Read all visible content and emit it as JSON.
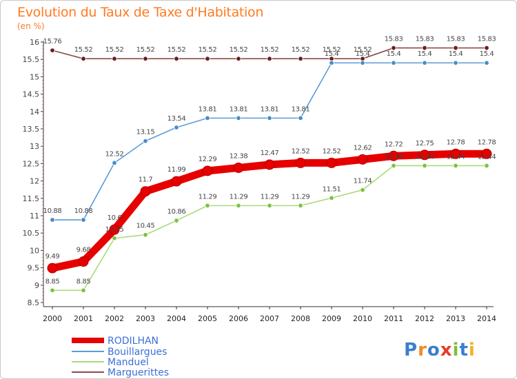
{
  "title": "Evolution du Taux de Taxe d'Habitation",
  "unit": "(en %)",
  "logo": {
    "letters": [
      "P",
      "r",
      "o",
      "x",
      "i",
      "t",
      "i"
    ],
    "colors": [
      "#3a7fcf",
      "#f08a24",
      "#3a7fcf",
      "#e83b2e",
      "#7bbf3a",
      "#3a7fcf",
      "#f0b323"
    ]
  },
  "chart_data": {
    "type": "line",
    "x": [
      "2000",
      "2001",
      "2002",
      "2003",
      "2004",
      "2005",
      "2006",
      "2007",
      "2008",
      "2009",
      "2010",
      "2011",
      "2012",
      "2013",
      "2014"
    ],
    "ylim": [
      8.5,
      16
    ],
    "yticks": [
      "8.5",
      "9",
      "9.5",
      "10",
      "10.5",
      "11",
      "11.5",
      "12",
      "12.5",
      "13",
      "13.5",
      "14",
      "14.5",
      "15",
      "15.5",
      "16"
    ],
    "grid": false,
    "legend_position": "bottom-left",
    "series": [
      {
        "name": "RODILHAN",
        "color": "#e60000",
        "marker": "#e60000",
        "values": [
          9.49,
          9.68,
          10.6,
          11.7,
          11.99,
          12.29,
          12.38,
          12.47,
          12.52,
          12.52,
          12.62,
          12.72,
          12.75,
          12.78,
          12.78
        ],
        "labels": [
          "9.49",
          "9.68",
          "10.6",
          "11.7",
          "11.99",
          "12.29",
          "12.38",
          "12.47",
          "12.52",
          "12.52",
          "12.62",
          "12.72",
          "12.75",
          "12.78",
          "12.78"
        ]
      },
      {
        "name": "Bouillargues",
        "color": "#5b9bd5",
        "marker": "#4a8bc8",
        "values": [
          10.88,
          10.88,
          12.52,
          13.15,
          13.54,
          13.81,
          13.81,
          13.81,
          13.81,
          15.4,
          15.4,
          15.4,
          15.4,
          15.4,
          15.4
        ],
        "labels": [
          "10.88",
          "10.88",
          "12.52",
          "13.15",
          "13.54",
          "13.81",
          "13.81",
          "13.81",
          "13.81",
          "15.4",
          "15.4",
          "15.4",
          "15.4",
          "15.4",
          "15.4"
        ]
      },
      {
        "name": "Manduel",
        "color": "#a8dc78",
        "marker": "#7cc242",
        "values": [
          8.85,
          8.85,
          10.35,
          10.45,
          10.86,
          11.29,
          11.29,
          11.29,
          11.29,
          11.51,
          11.74,
          12.44,
          12.44,
          12.44,
          12.44
        ],
        "labels": [
          "8.85",
          "8.85",
          "10.35",
          "10.45",
          "10.86",
          "11.29",
          "11.29",
          "11.29",
          "11.29",
          "11.51",
          "11.74",
          "12.44",
          "12.44",
          "12.44",
          "12.44"
        ]
      },
      {
        "name": "Marguerittes",
        "color": "#8b4a4a",
        "marker": "#6b1f1f",
        "values": [
          15.76,
          15.52,
          15.52,
          15.52,
          15.52,
          15.52,
          15.52,
          15.52,
          15.52,
          15.52,
          15.52,
          15.83,
          15.83,
          15.83,
          15.83
        ],
        "labels": [
          "15.76",
          "15.52",
          "15.52",
          "15.52",
          "15.52",
          "15.52",
          "15.52",
          "15.52",
          "15.52",
          "15.52",
          "15.52",
          "15.83",
          "15.83",
          "15.83",
          "15.83"
        ]
      }
    ]
  }
}
